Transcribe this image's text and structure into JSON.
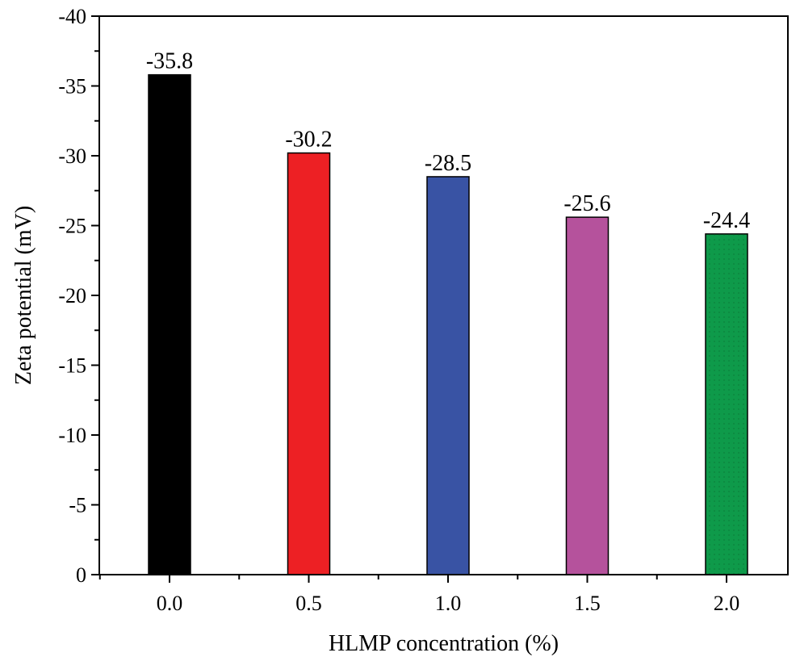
{
  "chart_data": {
    "type": "bar",
    "title": "",
    "xlabel": "HLMP concentration (%)",
    "ylabel": "Zeta potential (mV)",
    "categories": [
      "0.0",
      "0.5",
      "1.0",
      "1.5",
      "2.0"
    ],
    "values": [
      -35.8,
      -30.2,
      -28.5,
      -25.6,
      -24.4
    ],
    "value_labels": [
      "-35.8",
      "-30.2",
      "-28.5",
      "-25.6",
      "-24.4"
    ],
    "colors": [
      "#000000",
      "#ed2024",
      "#3953a4",
      "#b5529c",
      "#0e9a4a"
    ],
    "ylim": [
      0,
      -40
    ],
    "yticks": [
      0,
      -5,
      -10,
      -15,
      -20,
      -25,
      -30,
      -35,
      -40
    ],
    "ytick_labels": [
      "0",
      "-5",
      "-10",
      "-15",
      "-20",
      "-25",
      "-30",
      "-35",
      "-40"
    ],
    "grid": false,
    "legend": "none"
  }
}
